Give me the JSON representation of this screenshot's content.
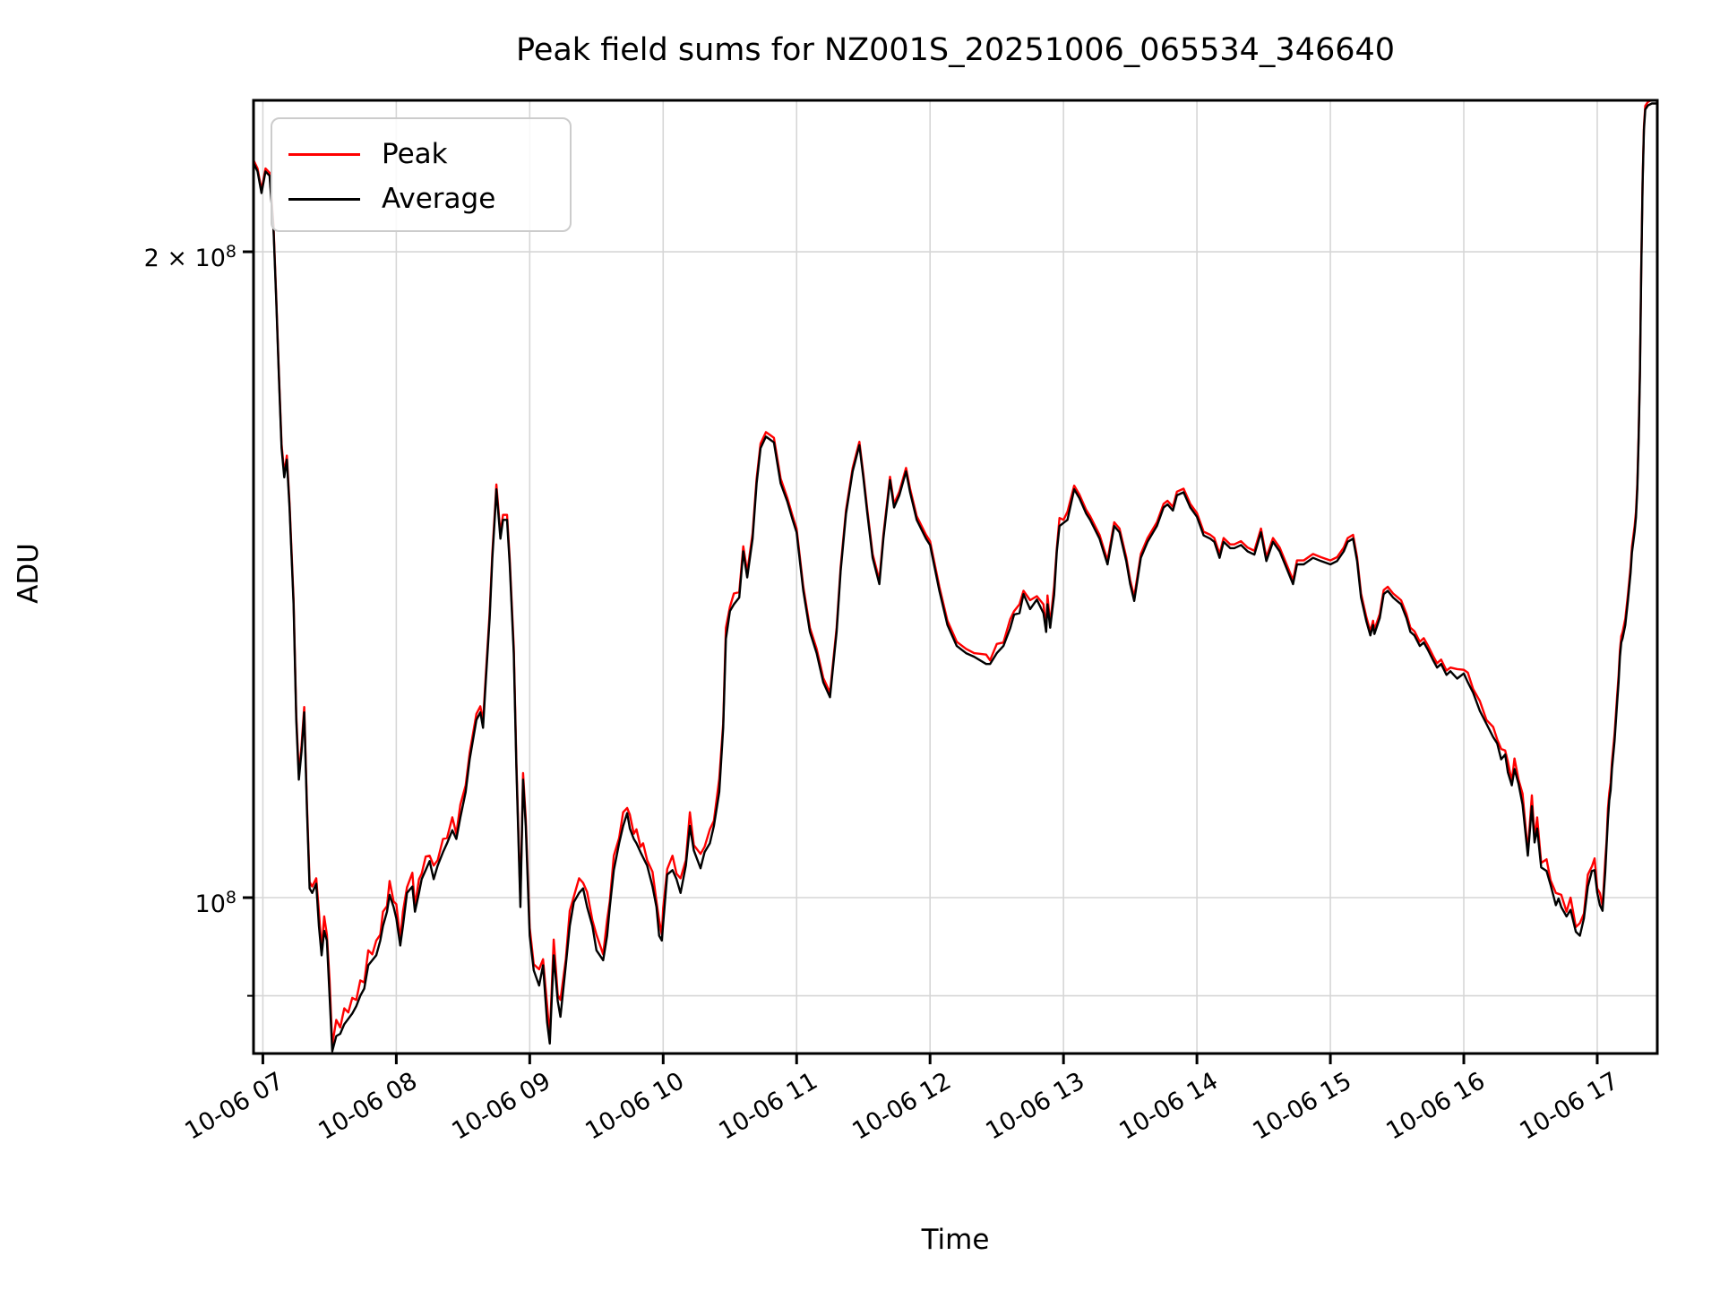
{
  "title": "Peak field sums for NZ001S_20251006_065534_346640",
  "axes": {
    "xlabel": "Time",
    "ylabel": "ADU"
  },
  "legend": {
    "position": "upper left",
    "items": [
      {
        "label": "Peak",
        "color": "#ff0000"
      },
      {
        "label": "Average",
        "color": "#000000"
      }
    ]
  },
  "y_axis": {
    "scale": "log",
    "major_tick_labels": [
      {
        "base": "2 × 10",
        "exp": "8",
        "value_millions": 200
      },
      {
        "base": "10",
        "exp": "8",
        "value_millions": 100
      }
    ]
  },
  "colors": {
    "peak_line": "#ff0000",
    "average_line": "#000000",
    "grid": "#d6d6d6",
    "spine": "#000000",
    "background": "#ffffff",
    "legend_border": "#cccccc"
  },
  "chart_data": {
    "type": "line",
    "title": "Peak field sums for NZ001S_20251006_065534_346640",
    "xlabel": "Time",
    "ylabel": "ADU",
    "yscale": "log",
    "grid": true,
    "legend_position": "upper left",
    "x_unit": "hours on 2025-10-06 (decimal)",
    "y_unit": "ADU, values stored in millions (1e6)",
    "xlim": [
      6.93,
      17.45
    ],
    "ylim_millions": [
      84.6,
      235.2
    ],
    "x_ticks": [
      7,
      8,
      9,
      10,
      11,
      12,
      13,
      14,
      15,
      16,
      17
    ],
    "x_tick_labels": [
      "10-06 07",
      "10-06 08",
      "10-06 09",
      "10-06 10",
      "10-06 11",
      "10-06 12",
      "10-06 13",
      "10-06 14",
      "10-06 15",
      "10-06 16",
      "10-06 17"
    ],
    "y_gridlines_millions": [
      90,
      100,
      200
    ],
    "y_major_ticks_millions": [
      100,
      200
    ],
    "y_minor_ticks_millions": [
      90
    ],
    "x": [
      6.93,
      6.96,
      6.99,
      7.02,
      7.05,
      7.08,
      7.1,
      7.12,
      7.14,
      7.16,
      7.18,
      7.2,
      7.23,
      7.25,
      7.27,
      7.29,
      7.31,
      7.33,
      7.35,
      7.37,
      7.4,
      7.42,
      7.44,
      7.46,
      7.48,
      7.5,
      7.52,
      7.55,
      7.58,
      7.61,
      7.64,
      7.67,
      7.7,
      7.73,
      7.76,
      7.79,
      7.82,
      7.85,
      7.88,
      7.9,
      7.93,
      7.95,
      7.98,
      8.0,
      8.03,
      8.05,
      8.08,
      8.12,
      8.14,
      8.17,
      8.19,
      8.22,
      8.25,
      8.28,
      8.31,
      8.35,
      8.38,
      8.42,
      8.45,
      8.48,
      8.52,
      8.55,
      8.6,
      8.63,
      8.65,
      8.67,
      8.7,
      8.72,
      8.74,
      8.75,
      8.78,
      8.8,
      8.83,
      8.85,
      8.88,
      8.9,
      8.93,
      8.95,
      8.97,
      9.0,
      9.03,
      9.07,
      9.1,
      9.13,
      9.15,
      9.18,
      9.21,
      9.23,
      9.27,
      9.3,
      9.33,
      9.37,
      9.4,
      9.43,
      9.47,
      9.5,
      9.55,
      9.58,
      9.6,
      9.63,
      9.67,
      9.7,
      9.73,
      9.75,
      9.78,
      9.8,
      9.83,
      9.85,
      9.88,
      9.92,
      9.95,
      9.97,
      9.99,
      10.0,
      10.03,
      10.07,
      10.1,
      10.13,
      10.17,
      10.2,
      10.23,
      10.28,
      10.31,
      10.35,
      10.38,
      10.42,
      10.45,
      10.47,
      10.5,
      10.53,
      10.57,
      10.6,
      10.63,
      10.67,
      10.7,
      10.73,
      10.77,
      10.8,
      10.83,
      10.88,
      10.93,
      10.97,
      11.0,
      11.05,
      11.1,
      11.15,
      11.2,
      11.25,
      11.3,
      11.33,
      11.37,
      11.42,
      11.47,
      11.5,
      11.53,
      11.57,
      11.62,
      11.65,
      11.7,
      11.73,
      11.77,
      11.82,
      11.85,
      11.9,
      11.97,
      12.0,
      12.07,
      12.13,
      12.2,
      12.27,
      12.33,
      12.42,
      12.45,
      12.5,
      12.55,
      12.6,
      12.63,
      12.67,
      12.7,
      12.75,
      12.8,
      12.85,
      12.87,
      12.88,
      12.9,
      12.93,
      12.95,
      12.97,
      13.0,
      13.03,
      13.08,
      13.12,
      13.17,
      13.2,
      13.23,
      13.27,
      13.3,
      13.33,
      13.38,
      13.42,
      13.47,
      13.5,
      13.53,
      13.58,
      13.63,
      13.7,
      13.75,
      13.78,
      13.82,
      13.85,
      13.9,
      13.95,
      14.0,
      14.05,
      14.1,
      14.13,
      14.17,
      14.2,
      14.25,
      14.28,
      14.33,
      14.38,
      14.43,
      14.48,
      14.52,
      14.57,
      14.62,
      14.67,
      14.72,
      14.75,
      14.8,
      14.87,
      14.93,
      15.0,
      15.05,
      15.1,
      15.13,
      15.17,
      15.2,
      15.23,
      15.27,
      15.3,
      15.32,
      15.33,
      15.37,
      15.4,
      15.43,
      15.47,
      15.5,
      15.53,
      15.57,
      15.6,
      15.63,
      15.67,
      15.7,
      15.73,
      15.77,
      15.8,
      15.83,
      15.87,
      15.9,
      15.95,
      16.0,
      16.03,
      16.07,
      16.12,
      16.17,
      16.22,
      16.25,
      16.28,
      16.31,
      16.33,
      16.36,
      16.38,
      16.41,
      16.44,
      16.48,
      16.51,
      16.53,
      16.55,
      16.58,
      16.62,
      16.65,
      16.69,
      16.71,
      16.73,
      16.77,
      16.8,
      16.84,
      16.87,
      16.9,
      16.93,
      16.96,
      16.98,
      17.0,
      17.02,
      17.04,
      17.06,
      17.07,
      17.08,
      17.09,
      17.1,
      17.11,
      17.13,
      17.15,
      17.16,
      17.17,
      17.18,
      17.19,
      17.21,
      17.23,
      17.25,
      17.26,
      17.28,
      17.29,
      17.3,
      17.31,
      17.32,
      17.33,
      17.34,
      17.35,
      17.36,
      17.38,
      17.41,
      17.44
    ],
    "series": [
      {
        "name": "Peak",
        "color": "#ff0000",
        "values": [
          220.7,
          218.7,
          213.7,
          218.7,
          217.7,
          205.7,
          190.7,
          175.7,
          162.7,
          157.7,
          160.7,
          152.7,
          137.7,
          121.7,
          114.2,
          117.7,
          122.7,
          110.7,
          101.7,
          101.2,
          102.1,
          98.5,
          94.6,
          98,
          96.1,
          91.5,
          85.4,
          87.7,
          87,
          88.8,
          88.4,
          89.8,
          89.6,
          91.5,
          91.3,
          94.5,
          94.1,
          95.5,
          96.1,
          98.5,
          99.1,
          101.8,
          99.6,
          99.3,
          95.6,
          98.5,
          101.1,
          102.7,
          99.1,
          102,
          102.6,
          104.5,
          104.6,
          103.5,
          104.1,
          106.5,
          106.6,
          109,
          107.1,
          110.5,
          112.8,
          116.8,
          121.8,
          122.8,
          120.8,
          126.8,
          135.8,
          144.8,
          151.8,
          155.8,
          147.8,
          150.8,
          150.8,
          143.8,
          130.8,
          115.8,
          99.8,
          114.3,
          108.8,
          96.8,
          93.1,
          92.6,
          93.6,
          89.1,
          86.1,
          95.6,
          90.1,
          89.6,
          93.6,
          98.6,
          100.1,
          102.1,
          101.6,
          100.6,
          97.6,
          96.1,
          94.1,
          97.6,
          99.6,
          104.6,
          106.6,
          109.6,
          110.1,
          109.3,
          107.1,
          107.6,
          105.6,
          106,
          104.1,
          102.8,
          99.6,
          97.6,
          96.1,
          98.9,
          103.1,
          104.6,
          102.6,
          102.1,
          104.1,
          109.6,
          105.8,
          104.8,
          105.6,
          107.6,
          108.6,
          113.6,
          120.6,
          133.6,
          136.6,
          138.6,
          138.8,
          145.8,
          141.8,
          147.8,
          156.8,
          162.8,
          164.8,
          164.3,
          163.8,
          156.8,
          153.6,
          150.6,
          148.6,
          139.6,
          133.6,
          130.6,
          126.6,
          124.6,
          133.6,
          142.6,
          151.6,
          158.6,
          163.1,
          157.6,
          151.6,
          144.6,
          140.6,
          147.6,
          157.1,
          152.6,
          154.6,
          158.6,
          155.1,
          150.6,
          147.6,
          146.6,
          139.6,
          134.6,
          131.6,
          130.6,
          130,
          129.8,
          129,
          131.3,
          131.5,
          134.8,
          136,
          137,
          139,
          137.6,
          138.2,
          137,
          133.5,
          138.3,
          134.1,
          139.7,
          145.5,
          150.3,
          150,
          151.3,
          155.6,
          154.1,
          151.6,
          150.6,
          149.3,
          147.6,
          145.6,
          143.6,
          149.6,
          148.6,
          144.1,
          140.6,
          138.1,
          144.6,
          147.1,
          149.6,
          152.6,
          153.1,
          152.1,
          154.6,
          155.1,
          152.6,
          151.1,
          148.1,
          147.6,
          147.1,
          144.6,
          147.1,
          146.1,
          146.1,
          146.6,
          145.6,
          145.1,
          148.6,
          144.1,
          147.1,
          145.6,
          143.1,
          140.6,
          143.6,
          143.6,
          144.6,
          144.1,
          143.6,
          144.1,
          145.6,
          147.1,
          147.6,
          144.1,
          138.6,
          135.1,
          133.1,
          134.6,
          133.3,
          135.6,
          139.1,
          139.6,
          138.6,
          138.1,
          137.6,
          135.6,
          133.6,
          133.1,
          131.6,
          132.1,
          131.1,
          129.6,
          128.6,
          129.1,
          127.6,
          128,
          127.8,
          127.7,
          127.3,
          125.1,
          123.5,
          121,
          120.1,
          118.5,
          117.3,
          117.1,
          115.7,
          113.3,
          116.1,
          113.5,
          111.8,
          105.1,
          111.6,
          106.6,
          109,
          103.8,
          104.2,
          101.9,
          100.5,
          100.4,
          100.3,
          98.5,
          100,
          96.9,
          97.3,
          98.3,
          102.5,
          103.4,
          104.3,
          101,
          100.5,
          99.1,
          104.1,
          106.3,
          110,
          111.9,
          113.1,
          115.7,
          119.2,
          124.4,
          126.9,
          130.4,
          132.4,
          133,
          134.9,
          138.4,
          142.6,
          145.7,
          149,
          151.3,
          155.9,
          163.9,
          175.9,
          196.9,
          215.9,
          228.9,
          233.9,
          234.9,
          235.4,
          235.4
        ]
      },
      {
        "name": "Average",
        "color": "#000000",
        "values": [
          220,
          218,
          213,
          218,
          217,
          205,
          190,
          175,
          162,
          157,
          160,
          152,
          137,
          121,
          113.5,
          117,
          122,
          110,
          101,
          100.5,
          101.5,
          97,
          94,
          96.5,
          95.5,
          90,
          84.8,
          86.2,
          86.4,
          87.3,
          87.8,
          88.3,
          89,
          90,
          90.7,
          93,
          93.5,
          94,
          95.5,
          97,
          98.5,
          100.3,
          99,
          97.8,
          95,
          97,
          100.5,
          101.2,
          98.5,
          100.5,
          102,
          103,
          104,
          102,
          103.5,
          105,
          106,
          107.5,
          106.5,
          109,
          112,
          116,
          121,
          122,
          120,
          126,
          135,
          144,
          151,
          155,
          147,
          150,
          150,
          143,
          130,
          115,
          99,
          113.5,
          108,
          96,
          92.5,
          91,
          93,
          87.5,
          85.5,
          94,
          89.5,
          88,
          93,
          97,
          99.5,
          100.5,
          101,
          99,
          97,
          94.5,
          93.5,
          96,
          99,
          103,
          106,
          108,
          109.5,
          107.7,
          106.5,
          106,
          105,
          104.4,
          103.5,
          101.2,
          99,
          96,
          95.5,
          97.3,
          102.5,
          103,
          102,
          100.5,
          103.5,
          108,
          105.2,
          103.2,
          105,
          106,
          108,
          112,
          120,
          132,
          136,
          137,
          138,
          145,
          141,
          147,
          156,
          162,
          164,
          163.5,
          163,
          156,
          153,
          150,
          148,
          139,
          133,
          130,
          126,
          124,
          133,
          142,
          151,
          158,
          162.5,
          157,
          151,
          144,
          140,
          147,
          156.5,
          152,
          154,
          158,
          154.5,
          150,
          147,
          146,
          139,
          134,
          131,
          130,
          129.5,
          128.5,
          128.5,
          130,
          131,
          133.5,
          135.5,
          135.7,
          138.5,
          136.3,
          137.7,
          135.7,
          133,
          137,
          133.6,
          138.4,
          145,
          149,
          149.5,
          150,
          155,
          153.5,
          151,
          150,
          148.7,
          147,
          145,
          143,
          149,
          148,
          143.5,
          140,
          137.5,
          144,
          146.5,
          149,
          152,
          152.5,
          151.5,
          154,
          154.5,
          152,
          150.5,
          147.5,
          147,
          146.5,
          144,
          146.5,
          145.5,
          145.5,
          146,
          145,
          144.5,
          148,
          143.5,
          146.5,
          145,
          142.5,
          140,
          143,
          143,
          144,
          143.5,
          143,
          143.5,
          145,
          146.5,
          147,
          143.5,
          138,
          134.5,
          132.5,
          134,
          132.7,
          135,
          138.5,
          139,
          138,
          137.5,
          137,
          135,
          133,
          132.5,
          131,
          131.5,
          130.5,
          129,
          128,
          128.5,
          127,
          127.5,
          126.5,
          127.2,
          126,
          124.6,
          122.2,
          120.5,
          118.8,
          118,
          116,
          116.6,
          114.4,
          112.8,
          114.8,
          113,
          110.5,
          104.6,
          110.3,
          106.1,
          107.7,
          103.3,
          102.9,
          101.4,
          99.2,
          99.9,
          99,
          98,
          98.7,
          96.4,
          96,
          97.8,
          101.2,
          102.9,
          103,
          100.5,
          99.2,
          98.6,
          102.8,
          105.8,
          108.7,
          111,
          112.2,
          114.8,
          118.3,
          123.5,
          126,
          129.5,
          131.5,
          132.1,
          134,
          137.5,
          141.7,
          144.8,
          148.1,
          150.4,
          155,
          163,
          175,
          196,
          215,
          228,
          233,
          234,
          234.5,
          234.5
        ]
      }
    ]
  }
}
